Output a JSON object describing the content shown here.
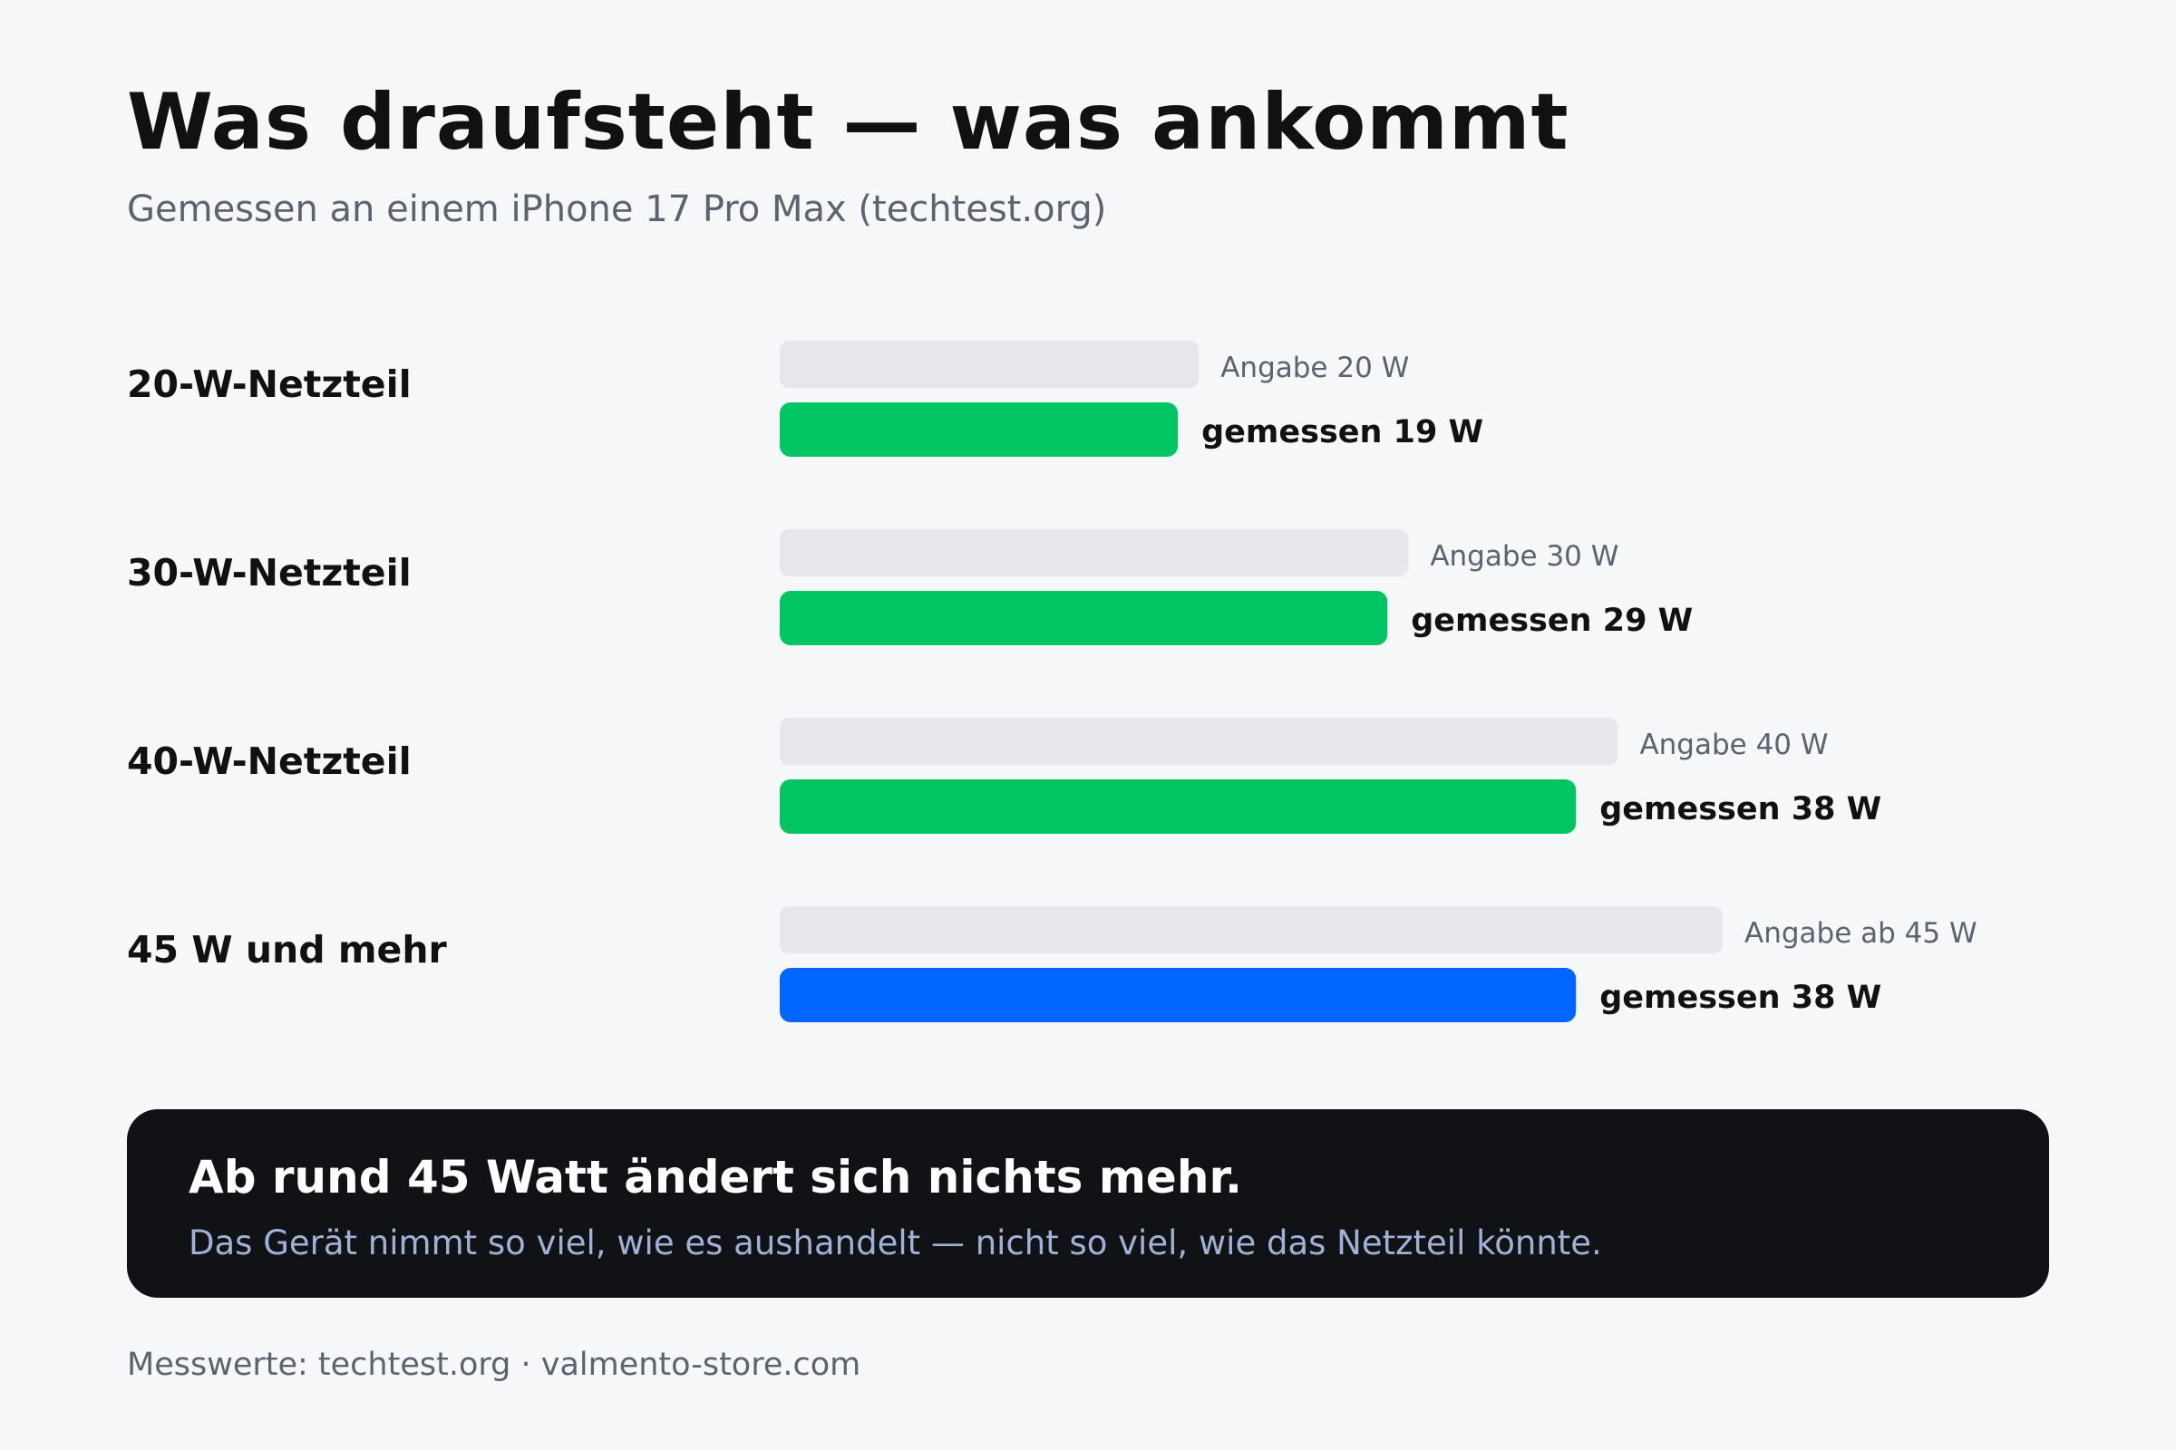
{
  "header": {
    "title": "Was draufsteht — was ankommt",
    "subtitle": "Gemessen an einem iPhone 17 Pro Max (techtest.org)"
  },
  "chart_data": {
    "type": "bar",
    "categories": [
      "20-W-Netzteil",
      "30-W-Netzteil",
      "40-W-Netzteil",
      "45 W und mehr"
    ],
    "series": [
      {
        "values": [
          20,
          30,
          40,
          45
        ],
        "labels": [
          "Angabe 20 W",
          "Angabe 30 W",
          "Angabe 40 W",
          "Angabe ab 45 W"
        ]
      },
      {
        "values": [
          19,
          29,
          38,
          38
        ],
        "labels": [
          "gemessen 19 W",
          "gemessen 29 W",
          "gemessen 38 W",
          "gemessen 38 W"
        ]
      }
    ],
    "xlim": [
      0,
      45
    ],
    "colors": {
      "rated": "#e5e7ec",
      "measured": "#00c562",
      "measured_highlight": "#0066ff",
      "rated_label": "#5b6370",
      "measured_label": "#111111"
    },
    "highlight_index": 3
  },
  "callout": {
    "title": "Ab rund 45 Watt ändert sich nichts mehr.",
    "text": "Das Gerät nimmt so viel, wie es aushandelt — nicht so viel, wie das Netzteil könnte."
  },
  "footer": {
    "text": "Messwerte: techtest.org · valmento-store.com"
  }
}
